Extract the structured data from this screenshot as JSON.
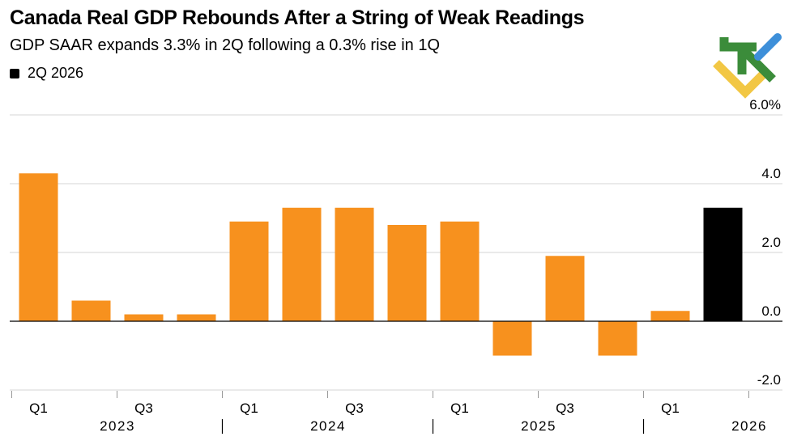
{
  "chart_data": {
    "type": "bar",
    "title": "Canada Real GDP Rebounds After a String of Weak Readings",
    "subtitle": "GDP SAAR expands 3.3% in 2Q following a 0.3% rise in 1Q",
    "legend": [
      {
        "name": "2Q 2026",
        "color": "#000000"
      }
    ],
    "categories": [
      "1Q 2023",
      "2Q 2023",
      "3Q 2023",
      "4Q 2023",
      "1Q 2024",
      "2Q 2024",
      "3Q 2024",
      "4Q 2024",
      "1Q 2025",
      "2Q 2025",
      "3Q 2025",
      "4Q 2025",
      "1Q 2026",
      "2Q 2026"
    ],
    "values": [
      4.3,
      0.6,
      0.2,
      0.2,
      2.9,
      3.3,
      3.3,
      2.8,
      2.9,
      -1.0,
      1.9,
      -1.0,
      0.3,
      3.3
    ],
    "highlight_index": 13,
    "colors": {
      "bar": "#F7911E",
      "highlight": "#000000",
      "grid": "#d4d4d4",
      "zero_line": "#000000"
    },
    "ylim": [
      -2.0,
      6.0
    ],
    "yticks": [
      "6.0%",
      "4.0",
      "2.0",
      "0.0",
      "-2.0"
    ],
    "ytick_values": [
      6,
      4,
      2,
      0,
      -2
    ],
    "xtick_labels": [
      {
        "index": 0,
        "label": "Q1"
      },
      {
        "index": 2,
        "label": "Q3"
      },
      {
        "index": 4,
        "label": "Q1"
      },
      {
        "index": 6,
        "label": "Q3"
      },
      {
        "index": 8,
        "label": "Q1"
      },
      {
        "index": 10,
        "label": "Q3"
      },
      {
        "index": 12,
        "label": "Q1"
      }
    ],
    "years": [
      {
        "label": "2023",
        "start": 0
      },
      {
        "label": "2024",
        "start": 4
      },
      {
        "label": "2025",
        "start": 8
      },
      {
        "label": "2026",
        "start": 12
      }
    ],
    "grid": true,
    "y_axis_position": "right",
    "xlabel": "",
    "ylabel": ""
  },
  "logo": {
    "name": "brand-logo",
    "colors": [
      "#3B8C3A",
      "#F2C744",
      "#3D8FD9"
    ]
  }
}
